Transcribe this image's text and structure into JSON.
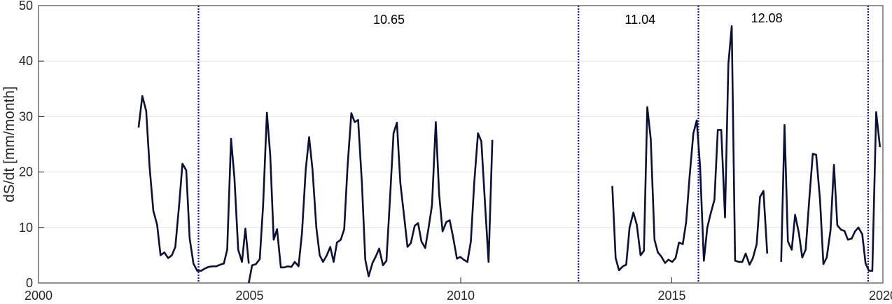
{
  "chart_data": {
    "type": "line",
    "xlabel": "",
    "ylabel": "dS/dt [mm/month]",
    "xlim": [
      2000,
      2020
    ],
    "ylim": [
      0,
      50
    ],
    "xticks": [
      2000,
      2005,
      2010,
      2015,
      2020
    ],
    "yticks": [
      0,
      10,
      20,
      30,
      40,
      50
    ],
    "grid": "horizontal",
    "line_color": "#0b1038",
    "vline_color": "#1010d0",
    "vlines": [
      2003.79,
      2012.79,
      2015.63,
      2019.65
    ],
    "annotations": [
      {
        "text": "10.65",
        "x": 8.3,
        "y": 47.5
      },
      {
        "text": "11.04",
        "x": 14.25,
        "y": 47.5
      },
      {
        "text": "12.08",
        "x": 17.25,
        "y": 47.7
      }
    ],
    "series": [
      {
        "segments": [
          [
            [
              2002.37,
              28.0
            ],
            [
              2002.46,
              33.7
            ],
            [
              2002.55,
              31.0
            ],
            [
              2002.63,
              21.0
            ],
            [
              2002.72,
              13.0
            ],
            [
              2002.81,
              10.5
            ],
            [
              2002.89,
              5.0
            ],
            [
              2002.98,
              5.5
            ],
            [
              2003.07,
              4.5
            ],
            [
              2003.16,
              5.0
            ],
            [
              2003.24,
              6.5
            ],
            [
              2003.33,
              14.0
            ],
            [
              2003.41,
              21.5
            ],
            [
              2003.5,
              20.3
            ],
            [
              2003.58,
              8.0
            ],
            [
              2003.67,
              3.5
            ],
            [
              2003.76,
              2.2
            ],
            [
              2003.85,
              2.2
            ],
            [
              2003.94,
              2.6
            ],
            [
              2004.03,
              2.9
            ],
            [
              2004.12,
              3.0
            ],
            [
              2004.21,
              3.0
            ],
            [
              2004.3,
              3.3
            ],
            [
              2004.39,
              3.5
            ],
            [
              2004.47,
              6.0
            ],
            [
              2004.56,
              26.0
            ],
            [
              2004.64,
              19.0
            ],
            [
              2004.73,
              6.0
            ],
            [
              2004.82,
              3.8
            ],
            [
              2004.9,
              9.8
            ],
            [
              2004.98,
              3.5
            ]
          ],
          [
            [
              2004.98,
              0.0
            ],
            [
              2005.06,
              3.2
            ],
            [
              2005.15,
              3.4
            ],
            [
              2005.24,
              4.3
            ],
            [
              2005.32,
              14.0
            ],
            [
              2005.41,
              30.7
            ],
            [
              2005.49,
              23.0
            ],
            [
              2005.57,
              7.8
            ],
            [
              2005.65,
              9.7
            ],
            [
              2005.74,
              2.8
            ],
            [
              2005.82,
              2.8
            ],
            [
              2005.9,
              3.0
            ],
            [
              2005.99,
              2.9
            ],
            [
              2006.07,
              3.8
            ],
            [
              2006.16,
              3.0
            ],
            [
              2006.24,
              9.0
            ],
            [
              2006.33,
              20.5
            ],
            [
              2006.41,
              26.3
            ],
            [
              2006.49,
              20.5
            ],
            [
              2006.58,
              10.0
            ],
            [
              2006.66,
              5.0
            ],
            [
              2006.74,
              3.8
            ],
            [
              2006.83,
              5.0
            ],
            [
              2006.91,
              6.5
            ],
            [
              2006.99,
              3.8
            ],
            [
              2007.07,
              7.3
            ],
            [
              2007.16,
              7.8
            ],
            [
              2007.24,
              9.7
            ],
            [
              2007.32,
              21.0
            ],
            [
              2007.41,
              30.6
            ],
            [
              2007.49,
              29.0
            ],
            [
              2007.57,
              29.4
            ],
            [
              2007.66,
              18.0
            ],
            [
              2007.74,
              4.2
            ],
            [
              2007.82,
              1.2
            ],
            [
              2007.91,
              3.6
            ],
            [
              2007.99,
              4.8
            ],
            [
              2008.07,
              6.2
            ],
            [
              2008.16,
              3.2
            ],
            [
              2008.24,
              4.0
            ],
            [
              2008.32,
              14.5
            ],
            [
              2008.41,
              27.0
            ],
            [
              2008.49,
              28.9
            ],
            [
              2008.57,
              18.0
            ],
            [
              2008.66,
              12.0
            ],
            [
              2008.74,
              6.5
            ],
            [
              2008.82,
              7.2
            ],
            [
              2008.91,
              10.3
            ],
            [
              2008.99,
              10.8
            ],
            [
              2009.07,
              7.5
            ],
            [
              2009.16,
              6.3
            ],
            [
              2009.24,
              10.0
            ],
            [
              2009.32,
              14.0
            ],
            [
              2009.41,
              29.0
            ],
            [
              2009.49,
              16.0
            ],
            [
              2009.57,
              9.3
            ],
            [
              2009.66,
              11.0
            ],
            [
              2009.74,
              11.3
            ],
            [
              2009.82,
              8.3
            ],
            [
              2009.91,
              4.4
            ],
            [
              2009.99,
              4.7
            ],
            [
              2010.07,
              4.2
            ],
            [
              2010.16,
              3.8
            ],
            [
              2010.24,
              7.5
            ],
            [
              2010.32,
              18.0
            ],
            [
              2010.41,
              27.0
            ],
            [
              2010.49,
              25.5
            ],
            [
              2010.57,
              15.0
            ],
            [
              2010.66,
              3.8
            ],
            [
              2010.75,
              25.8
            ]
          ]
        ]
      },
      {
        "segments": [
          [
            [
              2013.59,
              17.5
            ],
            [
              2013.67,
              4.5
            ],
            [
              2013.75,
              2.3
            ],
            [
              2013.84,
              3.0
            ],
            [
              2013.92,
              3.3
            ],
            [
              2014.0,
              10.0
            ],
            [
              2014.09,
              12.7
            ],
            [
              2014.17,
              10.5
            ],
            [
              2014.26,
              5.0
            ],
            [
              2014.34,
              5.8
            ],
            [
              2014.42,
              31.7
            ],
            [
              2014.5,
              26.0
            ],
            [
              2014.59,
              7.8
            ],
            [
              2014.67,
              5.5
            ],
            [
              2014.75,
              4.8
            ],
            [
              2014.84,
              3.6
            ],
            [
              2014.92,
              4.2
            ],
            [
              2015.01,
              3.8
            ],
            [
              2015.09,
              4.5
            ],
            [
              2015.17,
              7.3
            ],
            [
              2015.26,
              7.0
            ],
            [
              2015.34,
              11.0
            ],
            [
              2015.42,
              19.0
            ],
            [
              2015.51,
              27.0
            ],
            [
              2015.59,
              29.3
            ],
            [
              2015.67,
              21.0
            ],
            [
              2015.76,
              4.0
            ],
            [
              2015.84,
              10.0
            ],
            [
              2015.92,
              12.5
            ],
            [
              2016.01,
              15.0
            ],
            [
              2016.09,
              27.6
            ],
            [
              2016.17,
              27.6
            ],
            [
              2016.26,
              11.8
            ],
            [
              2016.34,
              39.5
            ],
            [
              2016.42,
              46.3
            ],
            [
              2016.5,
              4.0
            ],
            [
              2016.59,
              3.8
            ],
            [
              2016.67,
              3.8
            ],
            [
              2016.75,
              5.3
            ],
            [
              2016.84,
              3.3
            ],
            [
              2016.92,
              4.5
            ],
            [
              2017.01,
              7.0
            ],
            [
              2017.09,
              15.5
            ],
            [
              2017.17,
              16.6
            ],
            [
              2017.26,
              5.3
            ]
          ],
          [
            [
              2017.59,
              3.8
            ],
            [
              2017.67,
              28.5
            ],
            [
              2017.75,
              7.5
            ],
            [
              2017.84,
              6.0
            ],
            [
              2017.92,
              12.3
            ],
            [
              2018.01,
              9.0
            ],
            [
              2018.09,
              4.6
            ],
            [
              2018.17,
              6.0
            ],
            [
              2018.26,
              15.5
            ],
            [
              2018.34,
              23.3
            ],
            [
              2018.42,
              23.1
            ],
            [
              2018.51,
              15.0
            ],
            [
              2018.59,
              3.4
            ],
            [
              2018.67,
              4.6
            ],
            [
              2018.76,
              9.5
            ],
            [
              2018.84,
              21.3
            ],
            [
              2018.92,
              10.4
            ],
            [
              2019.01,
              9.6
            ],
            [
              2019.09,
              9.4
            ],
            [
              2019.17,
              7.8
            ],
            [
              2019.26,
              8.0
            ],
            [
              2019.34,
              9.3
            ],
            [
              2019.42,
              10.0
            ],
            [
              2019.51,
              8.8
            ],
            [
              2019.59,
              3.5
            ],
            [
              2019.67,
              2.2
            ],
            [
              2019.75,
              2.2
            ],
            [
              2019.84,
              30.8
            ],
            [
              2019.93,
              24.5
            ]
          ]
        ]
      }
    ]
  }
}
